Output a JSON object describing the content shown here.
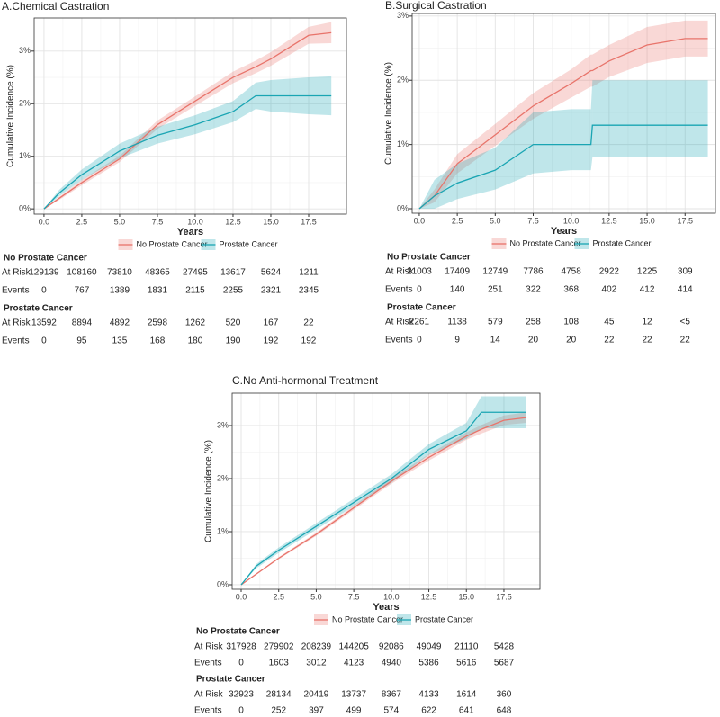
{
  "chart_data": [
    {
      "type": "line",
      "title": "A.Chemical Castration",
      "xlabel": "Years",
      "ylabel": "Cumulative Incidence (%)",
      "xlim": [
        -0.65,
        20
      ],
      "ylim": [
        -0.1,
        3.63
      ],
      "xticks": [
        {
          "value": 0,
          "label": "0.0"
        },
        {
          "value": 2.5,
          "label": "2.5"
        },
        {
          "value": 5,
          "label": "5.0"
        },
        {
          "value": 7.5,
          "label": "7.5"
        },
        {
          "value": 10,
          "label": "10.0"
        },
        {
          "value": 12.5,
          "label": "12.5"
        },
        {
          "value": 15,
          "label": "15.0"
        },
        {
          "value": 17.5,
          "label": "17.5"
        }
      ],
      "yticks": [
        {
          "value": 0,
          "label": "0%"
        },
        {
          "value": 1,
          "label": "1%"
        },
        {
          "value": 2,
          "label": "2%"
        },
        {
          "value": 3,
          "label": "3%"
        }
      ],
      "grid": true,
      "x": [
        0,
        1,
        2.5,
        5,
        7.5,
        10,
        12.5,
        14,
        15,
        17.5,
        19
      ],
      "series": [
        {
          "name": "No Prostate Cancer",
          "color": "#e8746b",
          "values": [
            0,
            0.2,
            0.5,
            0.95,
            1.6,
            2.05,
            2.5,
            2.7,
            2.85,
            3.3,
            3.35
          ],
          "lower": [
            0,
            0.17,
            0.45,
            0.89,
            1.52,
            1.96,
            2.39,
            2.58,
            2.72,
            3.14,
            3.15
          ],
          "upper": [
            0,
            0.23,
            0.55,
            1.01,
            1.68,
            2.14,
            2.61,
            2.82,
            2.98,
            3.46,
            3.55
          ]
        },
        {
          "name": "Prostate Cancer",
          "color": "#1aa5b3",
          "values": [
            0,
            0.3,
            0.65,
            1.1,
            1.4,
            1.6,
            1.85,
            2.15,
            2.15,
            2.15,
            2.15
          ],
          "lower": [
            0,
            0.24,
            0.55,
            0.96,
            1.24,
            1.42,
            1.65,
            1.9,
            1.85,
            1.8,
            1.78
          ],
          "upper": [
            0,
            0.36,
            0.75,
            1.24,
            1.56,
            1.78,
            2.05,
            2.4,
            2.45,
            2.5,
            2.52
          ]
        }
      ],
      "risk_table": {
        "groups": [
          {
            "name": "No Prostate Cancer",
            "rows": [
              {
                "label": "At Risk",
                "values": [
                  129139,
                  108160,
                  73810,
                  48365,
                  27495,
                  13617,
                  5624,
                  1211
                ]
              },
              {
                "label": "Events",
                "values": [
                  0,
                  767,
                  1389,
                  1831,
                  2115,
                  2255,
                  2321,
                  2345
                ]
              }
            ]
          },
          {
            "name": "Prostate Cancer",
            "rows": [
              {
                "label": "At Risk",
                "values": [
                  13592,
                  8894,
                  4892,
                  2598,
                  1262,
                  520,
                  167,
                  22
                ]
              },
              {
                "label": "Events",
                "values": [
                  0,
                  95,
                  135,
                  168,
                  180,
                  190,
                  192,
                  192
                ]
              }
            ]
          }
        ]
      }
    },
    {
      "type": "line",
      "title": "B.Surgical Castration",
      "xlabel": "Years",
      "ylabel": "Cumulative Incidence (%)",
      "xlim": [
        -0.47,
        19.5
      ],
      "ylim": [
        -0.07,
        3.04
      ],
      "xticks": [
        {
          "value": 0,
          "label": "0.0"
        },
        {
          "value": 2.5,
          "label": "2.5"
        },
        {
          "value": 5,
          "label": "5.0"
        },
        {
          "value": 7.5,
          "label": "7.5"
        },
        {
          "value": 10,
          "label": "10.0"
        },
        {
          "value": 12.5,
          "label": "12.5"
        },
        {
          "value": 15,
          "label": "15.0"
        },
        {
          "value": 17.5,
          "label": "17.5"
        }
      ],
      "yticks": [
        {
          "value": 0,
          "label": "0%"
        },
        {
          "value": 1,
          "label": "1%"
        },
        {
          "value": 2,
          "label": "2%"
        },
        {
          "value": 3,
          "label": "3%"
        }
      ],
      "grid": true,
      "x": [
        0,
        1,
        2.5,
        5,
        7.5,
        10,
        11.3,
        11.4,
        12.5,
        15,
        17.5,
        19
      ],
      "series": [
        {
          "name": "No Prostate Cancer",
          "color": "#e8746b",
          "values": [
            0,
            0.2,
            0.7,
            1.15,
            1.6,
            1.95,
            2.15,
            2.15,
            2.3,
            2.55,
            2.65,
            2.65
          ],
          "lower": [
            0,
            0.1,
            0.55,
            0.98,
            1.4,
            1.73,
            1.9,
            1.9,
            2.05,
            2.27,
            2.37,
            2.37
          ],
          "upper": [
            0,
            0.3,
            0.85,
            1.32,
            1.8,
            2.17,
            2.4,
            2.4,
            2.55,
            2.83,
            2.93,
            2.93
          ]
        },
        {
          "name": "Prostate Cancer",
          "color": "#1aa5b3",
          "values": [
            0,
            0.2,
            0.4,
            0.6,
            1.0,
            1.0,
            1.0,
            1.3,
            1.3,
            1.3,
            1.3,
            1.3
          ],
          "lower": [
            0,
            0,
            0.15,
            0.3,
            0.55,
            0.6,
            0.6,
            0.8,
            0.8,
            0.8,
            0.8,
            0.8
          ],
          "upper": [
            0,
            0.45,
            0.7,
            0.95,
            1.5,
            1.55,
            1.55,
            2.0,
            2.0,
            2.0,
            2.0,
            2.0
          ]
        }
      ],
      "risk_table": {
        "groups": [
          {
            "name": "No Prostate Cancer",
            "rows": [
              {
                "label": "At Risk",
                "values": [
                  21003,
                  17409,
                  12749,
                  7786,
                  4758,
                  2922,
                  1225,
                  309
                ]
              },
              {
                "label": "Events",
                "values": [
                  0,
                  140,
                  251,
                  322,
                  368,
                  402,
                  412,
                  414
                ]
              }
            ]
          },
          {
            "name": "Prostate Cancer",
            "rows": [
              {
                "label": "At Risk",
                "values": [
                  2261,
                  1138,
                  579,
                  258,
                  108,
                  45,
                  12,
                  "<5"
                ]
              },
              {
                "label": "Events",
                "values": [
                  0,
                  9,
                  14,
                  20,
                  20,
                  22,
                  22,
                  22
                ]
              }
            ]
          }
        ]
      }
    },
    {
      "type": "line",
      "title": "C.No Anti-hormonal Treatment",
      "xlabel": "Years",
      "ylabel": "Cumulative Incidence (%)",
      "xlim": [
        -0.6,
        19.9
      ],
      "ylim": [
        -0.085,
        3.61
      ],
      "xticks": [
        {
          "value": 0,
          "label": "0.0"
        },
        {
          "value": 2.5,
          "label": "2.5"
        },
        {
          "value": 5,
          "label": "5.0"
        },
        {
          "value": 7.5,
          "label": "7.5"
        },
        {
          "value": 10,
          "label": "10.0"
        },
        {
          "value": 12.5,
          "label": "12.5"
        },
        {
          "value": 15,
          "label": "15.0"
        },
        {
          "value": 17.5,
          "label": "17.5"
        }
      ],
      "yticks": [
        {
          "value": 0,
          "label": "0%"
        },
        {
          "value": 1,
          "label": "1%"
        },
        {
          "value": 2,
          "label": "2%"
        },
        {
          "value": 3,
          "label": "3%"
        }
      ],
      "grid": true,
      "x": [
        0,
        1,
        2.5,
        5,
        7.5,
        10,
        12.5,
        15,
        16,
        17.5,
        19
      ],
      "series": [
        {
          "name": "No Prostate Cancer",
          "color": "#e8746b",
          "values": [
            0,
            0.2,
            0.5,
            0.95,
            1.45,
            1.95,
            2.4,
            2.8,
            2.93,
            3.1,
            3.15
          ],
          "lower": [
            0,
            0.19,
            0.48,
            0.92,
            1.41,
            1.9,
            2.34,
            2.73,
            2.85,
            3.01,
            3.05
          ],
          "upper": [
            0,
            0.21,
            0.52,
            0.98,
            1.49,
            2.0,
            2.46,
            2.87,
            3.01,
            3.19,
            3.25
          ]
        },
        {
          "name": "Prostate Cancer",
          "color": "#1aa5b3",
          "values": [
            0,
            0.35,
            0.65,
            1.1,
            1.55,
            2.0,
            2.55,
            2.9,
            3.25,
            3.25,
            3.25
          ],
          "lower": [
            0,
            0.31,
            0.6,
            1.04,
            1.48,
            1.92,
            2.45,
            2.75,
            2.95,
            2.95,
            2.95
          ],
          "upper": [
            0,
            0.39,
            0.7,
            1.16,
            1.62,
            2.08,
            2.65,
            3.05,
            3.55,
            3.55,
            3.55
          ]
        }
      ],
      "risk_table": {
        "groups": [
          {
            "name": "No Prostate Cancer",
            "rows": [
              {
                "label": "At Risk",
                "values": [
                  317928,
                  279902,
                  208239,
                  144205,
                  92086,
                  49049,
                  21110,
                  5428
                ]
              },
              {
                "label": "Events",
                "values": [
                  0,
                  1603,
                  3012,
                  4123,
                  4940,
                  5386,
                  5616,
                  5687
                ]
              }
            ]
          },
          {
            "name": "Prostate Cancer",
            "rows": [
              {
                "label": "At Risk",
                "values": [
                  32923,
                  28134,
                  20419,
                  13737,
                  8367,
                  4133,
                  1614,
                  360
                ]
              },
              {
                "label": "Events",
                "values": [
                  0,
                  252,
                  397,
                  499,
                  574,
                  622,
                  641,
                  648
                ]
              }
            ]
          }
        ]
      }
    }
  ]
}
